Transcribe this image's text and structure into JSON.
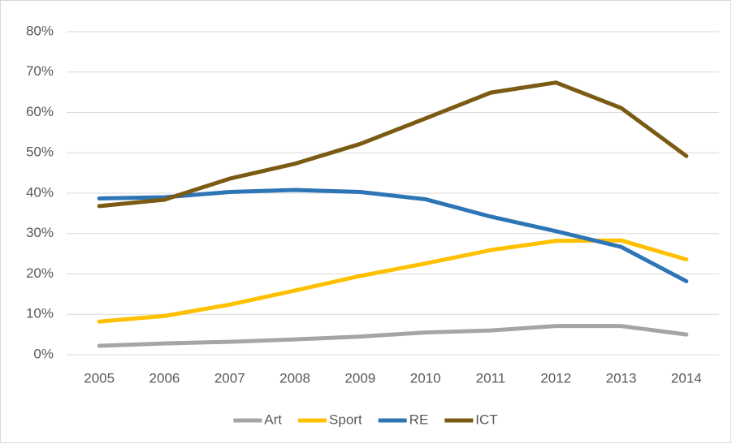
{
  "chart_data": {
    "type": "line",
    "categories": [
      "2005",
      "2006",
      "2007",
      "2008",
      "2009",
      "2010",
      "2011",
      "2012",
      "2013",
      "2014"
    ],
    "series": [
      {
        "name": "Art",
        "color": "#a5a5a5",
        "values": [
          2.2,
          2.8,
          3.2,
          3.8,
          4.5,
          5.5,
          6.0,
          7.1,
          7.1,
          5.0
        ]
      },
      {
        "name": "Sport",
        "color": "#ffc000",
        "values": [
          8.2,
          9.6,
          12.4,
          15.9,
          19.5,
          22.6,
          25.9,
          28.2,
          28.3,
          23.6
        ]
      },
      {
        "name": "RE",
        "color": "#2e75b6",
        "values": [
          38.7,
          39.0,
          40.3,
          40.8,
          40.3,
          38.5,
          34.2,
          30.6,
          26.7,
          18.2
        ]
      },
      {
        "name": "ICT",
        "color": "#7b5a14",
        "values": [
          36.8,
          38.4,
          43.6,
          47.3,
          52.2,
          58.5,
          64.9,
          67.4,
          61.1,
          49.2
        ]
      }
    ],
    "ylim": [
      0,
      80
    ],
    "yticks": [
      {
        "value": 0,
        "label": "0%"
      },
      {
        "value": 10,
        "label": "10%"
      },
      {
        "value": 20,
        "label": "20%"
      },
      {
        "value": 30,
        "label": "30%"
      },
      {
        "value": 40,
        "label": "40%"
      },
      {
        "value": 50,
        "label": "50%"
      },
      {
        "value": 60,
        "label": "60%"
      },
      {
        "value": 70,
        "label": "70%"
      },
      {
        "value": 80,
        "label": "80%"
      }
    ],
    "grid": true,
    "legend": "bottom"
  }
}
